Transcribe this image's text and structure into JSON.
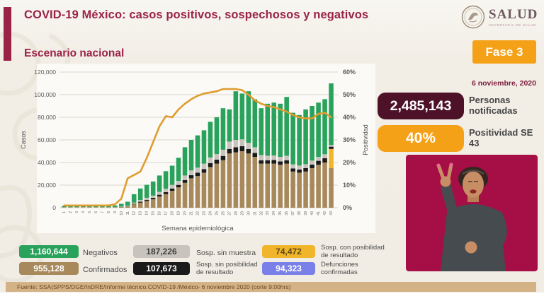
{
  "header": {
    "title": "COVID-19 México: casos positivos, sospechosos y negativos",
    "logo": {
      "name": "SALUD",
      "subtitle": "SECRETARÍA DE SALUD"
    }
  },
  "main": {
    "section_title": "Escenario nacional"
  },
  "phase": {
    "label": "Fase 3",
    "date": "6 noviembre, 2020"
  },
  "stats": [
    {
      "value": "2,485,143",
      "label": "Personas notificadas"
    },
    {
      "value": "40%",
      "label": "Positividad SE 43"
    }
  ],
  "legend": [
    {
      "value": "1,160,644",
      "label": "Negativos",
      "color": "#29a25b",
      "text": "#ffffff"
    },
    {
      "value": "187,226",
      "label": "Sosp. sin muestra",
      "color": "#c8c4bd",
      "text": "#3e3e3e"
    },
    {
      "value": "74,472",
      "label": "Sosp. con posibilidad de resultado",
      "color": "#f0b52b",
      "text": "#5f4a14"
    },
    {
      "value": "955,128",
      "label": "Confirmados",
      "color": "#a7895c",
      "text": "#ffffff"
    },
    {
      "value": "107,673",
      "label": "Sosp. sin posibilidad de resultado",
      "color": "#1a1a1a",
      "text": "#ffffff"
    },
    {
      "value": "94,323",
      "label": "Defunciones confirmadas",
      "color": "#7b80e8",
      "text": "#ffffff"
    }
  ],
  "footer": {
    "source": "Fuente: SSA(SPPS/DGE/InDRE/Informe técnico.COVID-19 /México- 6 noviembre 2020 (corte 9:00hrs)"
  },
  "colors": {
    "accent_maroon": "#9b2247",
    "dark_plum_pill": "#4e1228",
    "orange": "#f5a118",
    "footer_tan": "#d3b286",
    "video_background": "#a50f45",
    "background_cream": "#f1ede4"
  },
  "chart_data": {
    "type": "bar",
    "subtype": "stacked-bars-with-line",
    "title": "Escenario nacional",
    "xlabel": "Semana epidemiológica",
    "ylabel_left": "Casos",
    "ylabel_right": "Positividad",
    "ylim_left": [
      0,
      120000
    ],
    "ylim_right": [
      0,
      60
    ],
    "grid": true,
    "yticks_left": [
      "0",
      "20,000",
      "40,000",
      "60,000",
      "80,000",
      "100,000",
      "120,000"
    ],
    "yticks_right": [
      "0%",
      "10%",
      "20%",
      "30%",
      "40%",
      "50%",
      "60%"
    ],
    "categories": [
      "1",
      "2",
      "3",
      "4",
      "5",
      "6",
      "7",
      "8",
      "9",
      "10",
      "11",
      "12",
      "13",
      "14",
      "15",
      "16",
      "17",
      "18",
      "19",
      "20",
      "21",
      "22",
      "23",
      "24",
      "25",
      "26",
      "27",
      "28",
      "29",
      "30",
      "31",
      "32",
      "33",
      "34",
      "35",
      "36",
      "37",
      "38",
      "39",
      "40",
      "41",
      "42",
      "43"
    ],
    "series": [
      {
        "name": "Confirmados",
        "color": "#a7895c",
        "values": [
          300,
          300,
          300,
          400,
          300,
          300,
          300,
          300,
          300,
          600,
          1200,
          3000,
          4500,
          6000,
          7500,
          10000,
          12000,
          15000,
          18000,
          22000,
          26000,
          28000,
          31000,
          36000,
          39000,
          42000,
          48000,
          49000,
          50000,
          48000,
          45000,
          39000,
          39000,
          39000,
          38000,
          39000,
          32000,
          31000,
          32000,
          35000,
          38000,
          40000,
          35000
        ]
      },
      {
        "name": "Sosp. con posibilidad de resultado",
        "color": "#f0b52b",
        "values": [
          0,
          0,
          0,
          0,
          0,
          0,
          0,
          0,
          0,
          0,
          0,
          0,
          0,
          0,
          0,
          0,
          0,
          0,
          0,
          0,
          0,
          0,
          0,
          0,
          0,
          0,
          0,
          0,
          0,
          0,
          0,
          0,
          0,
          0,
          0,
          0,
          0,
          0,
          0,
          0,
          0,
          0,
          17000
        ]
      },
      {
        "name": "Sosp. sin posibilidad de resultado",
        "color": "#1a1a1a",
        "values": [
          0,
          0,
          0,
          0,
          0,
          0,
          0,
          0,
          0,
          100,
          200,
          500,
          800,
          1000,
          1200,
          1500,
          1800,
          2000,
          2200,
          2500,
          2800,
          3000,
          3200,
          3500,
          3500,
          3800,
          4000,
          4500,
          4500,
          4000,
          3500,
          3000,
          3000,
          3200,
          3000,
          3000,
          2800,
          2800,
          3000,
          3200,
          3500,
          3800,
          2000
        ]
      },
      {
        "name": "Sosp. sin muestra",
        "color": "#c8c4bd",
        "values": [
          200,
          200,
          200,
          200,
          200,
          200,
          200,
          200,
          200,
          300,
          400,
          1000,
          1500,
          1800,
          2000,
          2500,
          3000,
          3200,
          3500,
          4000,
          4200,
          4500,
          4800,
          5000,
          5000,
          5500,
          6500,
          6500,
          6000,
          5500,
          5000,
          4500,
          4000,
          4000,
          4000,
          4000,
          3500,
          3500,
          3500,
          3500,
          3500,
          3500,
          1500
        ]
      },
      {
        "name": "Negativos",
        "color": "#29a25b",
        "values": [
          1000,
          1200,
          1300,
          1600,
          1400,
          1400,
          1500,
          1400,
          1500,
          2500,
          3500,
          7500,
          10200,
          11500,
          12500,
          14500,
          15500,
          17000,
          20500,
          25000,
          27000,
          28500,
          29500,
          31500,
          32500,
          36700,
          28500,
          43000,
          40500,
          45500,
          42500,
          41500,
          46000,
          46800,
          47000,
          52000,
          45700,
          44700,
          48500,
          48300,
          48000,
          48700,
          54500
        ]
      }
    ],
    "line": {
      "name": "Positividad (%)",
      "color": "#e09c2e",
      "values": [
        1,
        1,
        1,
        1,
        1,
        1,
        1,
        1,
        1.5,
        4,
        13,
        14.5,
        16,
        22,
        29,
        36,
        40.5,
        40,
        43.5,
        46,
        48,
        49.5,
        50.5,
        51,
        51.5,
        52.5,
        52.5,
        52.5,
        52,
        50,
        47.5,
        46,
        45,
        44.5,
        43.5,
        42.5,
        41,
        40,
        39.5,
        39.5,
        41.5,
        42,
        40
      ]
    },
    "legend_position": "bottom"
  }
}
